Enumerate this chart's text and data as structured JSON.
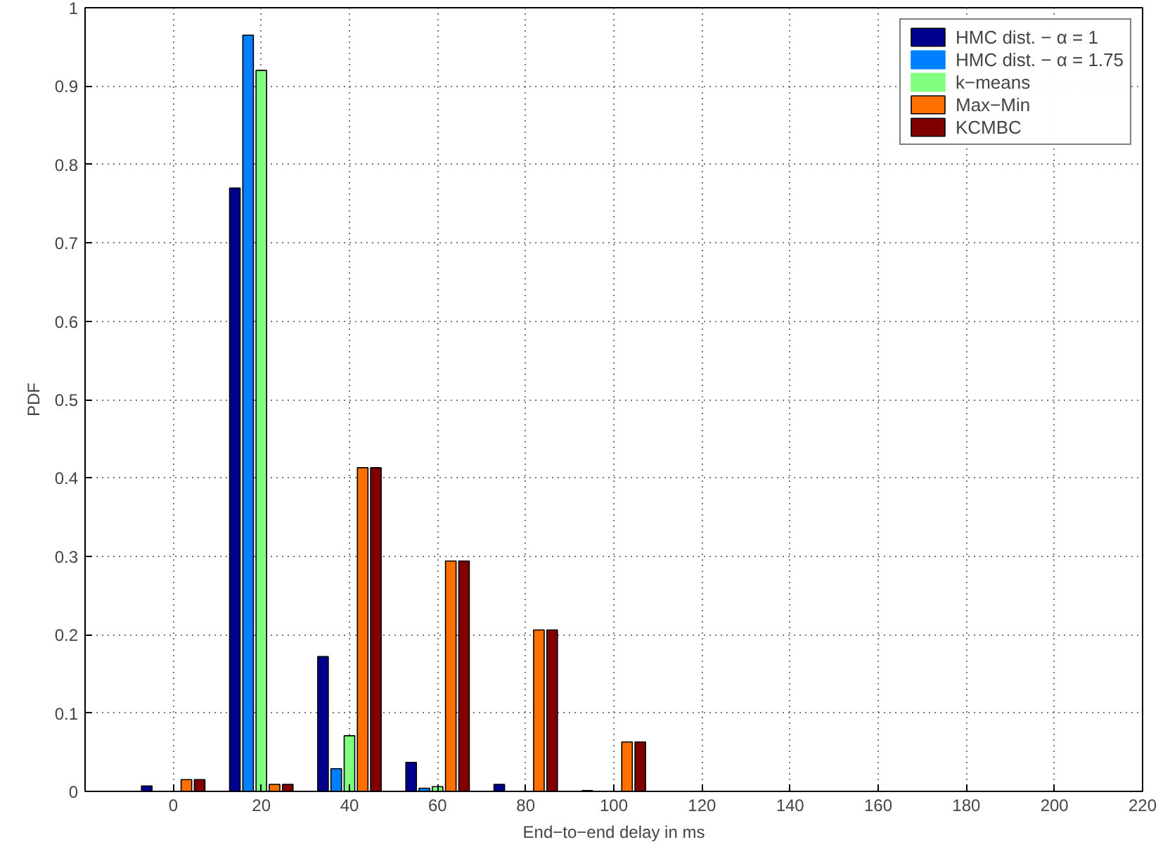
{
  "chart_data": {
    "type": "bar",
    "xlabel": "End−to−end delay in ms",
    "ylabel": "PDF",
    "x": [
      0,
      20,
      40,
      60,
      80,
      100,
      120,
      140,
      160,
      180,
      200
    ],
    "series": [
      {
        "name": "HMC dist. − α = 1",
        "color": "#00008f",
        "values": [
          0.007,
          0.77,
          0.172,
          0.037,
          0.009,
          0.001,
          0,
          0,
          0,
          0,
          0
        ]
      },
      {
        "name": "HMC dist. − α = 1.75",
        "color": "#0080ff",
        "values": [
          0,
          0.965,
          0.029,
          0.004,
          0,
          0,
          0,
          0,
          0,
          0,
          0
        ]
      },
      {
        "name": "k−means",
        "color": "#80ff80",
        "values": [
          0,
          0.92,
          0.071,
          0.006,
          0,
          0,
          0,
          0,
          0,
          0,
          0
        ]
      },
      {
        "name": "Max−Min",
        "color": "#ff7000",
        "values": [
          0.015,
          0.009,
          0.413,
          0.294,
          0.206,
          0.063,
          0,
          0,
          0,
          0,
          0
        ]
      },
      {
        "name": "KCMBC",
        "color": "#800000",
        "values": [
          0.015,
          0.009,
          0.413,
          0.294,
          0.206,
          0.063,
          0,
          0,
          0,
          0,
          0
        ]
      }
    ],
    "xlim": [
      -20,
      220
    ],
    "xticks": [
      0,
      20,
      40,
      60,
      80,
      100,
      120,
      140,
      160,
      180,
      200,
      220
    ],
    "ylim": [
      0,
      1
    ],
    "yticks": [
      0,
      0.1,
      0.2,
      0.3,
      0.4,
      0.5,
      0.6,
      0.7,
      0.8,
      0.9,
      1
    ],
    "grid": true,
    "legend": "top right"
  }
}
